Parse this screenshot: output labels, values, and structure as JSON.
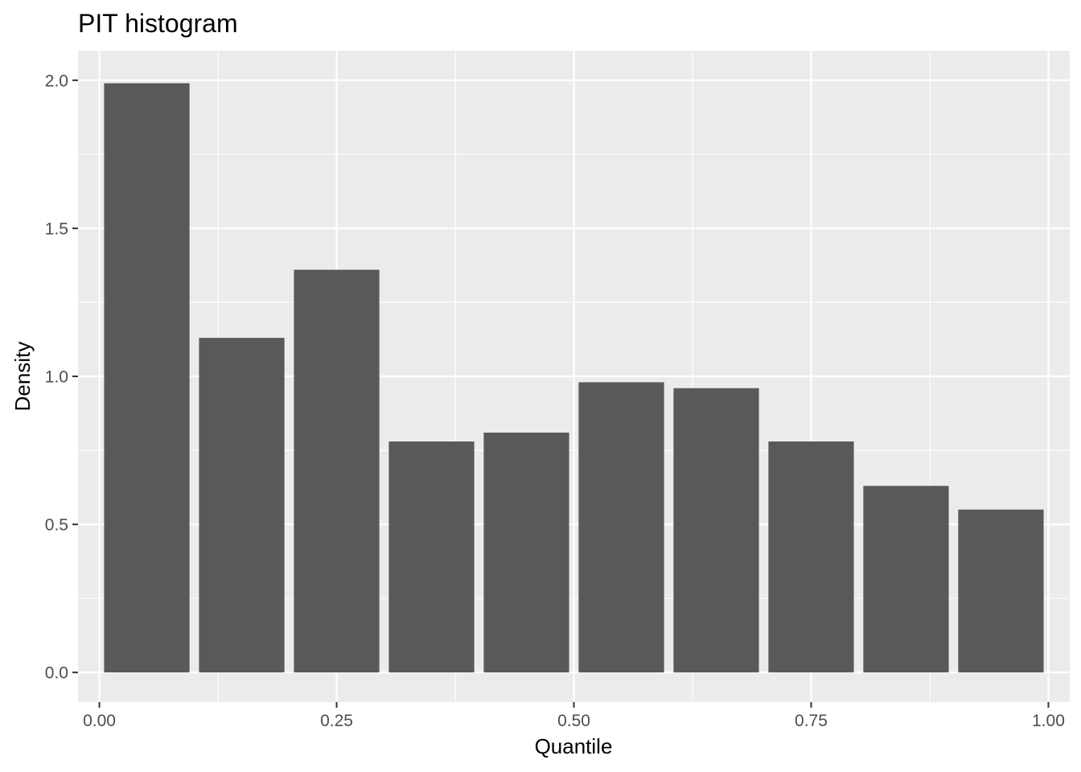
{
  "chart_data": {
    "type": "bar",
    "title": "PIT histogram",
    "xlabel": "Quantile",
    "ylabel": "Density",
    "x_bins": [
      [
        0.0,
        0.1
      ],
      [
        0.1,
        0.2
      ],
      [
        0.2,
        0.3
      ],
      [
        0.3,
        0.4
      ],
      [
        0.4,
        0.5
      ],
      [
        0.5,
        0.6
      ],
      [
        0.6,
        0.7
      ],
      [
        0.7,
        0.8
      ],
      [
        0.8,
        0.9
      ],
      [
        0.9,
        1.0
      ]
    ],
    "values": [
      1.99,
      1.13,
      1.36,
      0.78,
      0.81,
      0.98,
      0.96,
      0.78,
      0.63,
      0.55
    ],
    "xlim": [
      -0.0225,
      1.0225
    ],
    "ylim": [
      -0.1,
      2.1
    ],
    "x_ticks": [
      0.0,
      0.25,
      0.5,
      0.75,
      1.0
    ],
    "x_tick_labels": [
      "0.00",
      "0.25",
      "0.50",
      "0.75",
      "1.00"
    ],
    "y_ticks": [
      0.0,
      0.5,
      1.0,
      1.5,
      2.0
    ],
    "y_tick_labels": [
      "0.0",
      "0.5",
      "1.0",
      "1.5",
      "2.0"
    ],
    "grid": true,
    "colors": {
      "panel": "#EBEBEB",
      "grid": "#FFFFFF",
      "bar": "#595959",
      "tick": "#333333"
    }
  }
}
